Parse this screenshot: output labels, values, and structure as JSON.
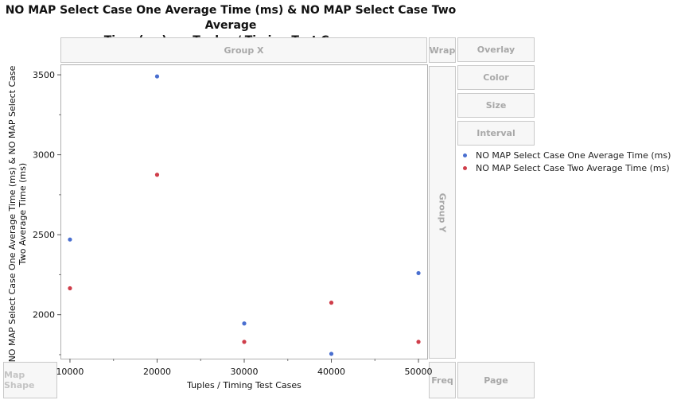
{
  "chart_data": {
    "type": "scatter",
    "title": "NO MAP Select Case One Average Time (ms) & NO MAP Select Case Two Average Time (ms) vs. Tuples / Timing Test Cases",
    "title_lines": [
      "NO MAP Select Case One Average Time (ms) & NO MAP Select Case Two Average",
      "Time (ms) vs. Tuples / Timing Test Cases"
    ],
    "xlabel": "Tuples / Timing Test Cases",
    "ylabel": "NO MAP Select Case One Average Time (ms) & NO MAP Select Case Two Average Time (ms)",
    "ylabel_lines": [
      "NO MAP Select Case One Average Time (ms) & NO MAP Select Case",
      "Two Average Time (ms)"
    ],
    "xlim": [
      9000,
      51000
    ],
    "ylim": [
      1725,
      3560
    ],
    "xticks": [
      10000,
      20000,
      30000,
      40000,
      50000
    ],
    "yticks": [
      2000,
      2500,
      3000,
      3500
    ],
    "legend_position": "right",
    "series": [
      {
        "name": "NO MAP Select Case One Average Time (ms)",
        "color": "#4a6fd0",
        "x": [
          10000,
          20000,
          30000,
          40000,
          50000
        ],
        "y": [
          2470,
          3490,
          1945,
          1755,
          2260
        ]
      },
      {
        "name": "NO MAP Select Case Two Average Time (ms)",
        "color": "#cf3d4a",
        "x": [
          10000,
          20000,
          30000,
          40000,
          50000
        ],
        "y": [
          2165,
          2875,
          1830,
          2075,
          1830
        ]
      }
    ]
  },
  "zones": {
    "group_x": "Group X",
    "wrap": "Wrap",
    "overlay": "Overlay",
    "color": "Color",
    "size": "Size",
    "interval": "Interval",
    "group_y": "Group Y",
    "map_shape": "Map Shape",
    "freq": "Freq",
    "page": "Page"
  }
}
